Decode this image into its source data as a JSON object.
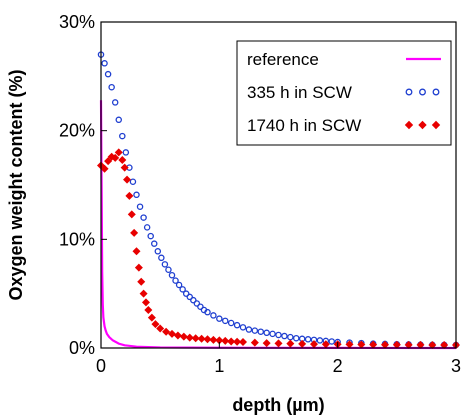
{
  "chart_data": {
    "type": "scatter",
    "xlabel": "depth (µm)",
    "ylabel": "Oxygen weight content (%)",
    "xlim": [
      0,
      3
    ],
    "ylim": [
      0,
      30
    ],
    "x_ticks": [
      {
        "value": 0,
        "label": "0"
      },
      {
        "value": 1,
        "label": "1"
      },
      {
        "value": 2,
        "label": "2"
      },
      {
        "value": 3,
        "label": "3"
      }
    ],
    "y_ticks": [
      {
        "value": 0,
        "label": "0%"
      },
      {
        "value": 10,
        "label": "10%"
      },
      {
        "value": 20,
        "label": "20%"
      },
      {
        "value": 30,
        "label": "30%"
      }
    ],
    "grid": false,
    "legend_position": "top-right",
    "series": [
      {
        "name": "reference",
        "style": "line",
        "color": "#ff00ff",
        "x": [
          0.0,
          0.005,
          0.01,
          0.015,
          0.02,
          0.03,
          0.04,
          0.05,
          0.07,
          0.1,
          0.15,
          0.2,
          0.3,
          0.5,
          1.0,
          2.0,
          3.0
        ],
        "y": [
          22.8,
          15.0,
          7.0,
          4.0,
          2.8,
          2.0,
          1.6,
          1.3,
          1.0,
          0.7,
          0.4,
          0.25,
          0.12,
          0.05,
          0.02,
          0.01,
          0.0
        ]
      },
      {
        "name": "335 h in SCW",
        "style": "open-circle",
        "color": "#1f3fd0",
        "x": [
          0.0,
          0.03,
          0.06,
          0.09,
          0.12,
          0.15,
          0.18,
          0.21,
          0.24,
          0.27,
          0.3,
          0.33,
          0.36,
          0.39,
          0.42,
          0.45,
          0.48,
          0.51,
          0.54,
          0.57,
          0.6,
          0.63,
          0.66,
          0.69,
          0.72,
          0.75,
          0.78,
          0.81,
          0.84,
          0.87,
          0.9,
          0.95,
          1.0,
          1.05,
          1.1,
          1.15,
          1.2,
          1.25,
          1.3,
          1.35,
          1.4,
          1.45,
          1.5,
          1.55,
          1.6,
          1.65,
          1.7,
          1.75,
          1.8,
          1.85,
          1.9,
          1.95,
          2.0,
          2.1,
          2.2,
          2.3,
          2.4,
          2.5,
          2.6,
          2.7,
          2.8,
          2.9,
          3.0
        ],
        "y": [
          27.0,
          26.2,
          25.2,
          24.0,
          22.6,
          21.0,
          19.5,
          18.0,
          16.6,
          15.3,
          14.1,
          13.0,
          12.0,
          11.1,
          10.3,
          9.6,
          8.9,
          8.3,
          7.7,
          7.2,
          6.7,
          6.2,
          5.8,
          5.4,
          5.0,
          4.7,
          4.4,
          4.1,
          3.8,
          3.5,
          3.3,
          3.0,
          2.7,
          2.5,
          2.3,
          2.1,
          1.9,
          1.7,
          1.6,
          1.5,
          1.4,
          1.3,
          1.2,
          1.1,
          1.0,
          0.9,
          0.85,
          0.8,
          0.75,
          0.7,
          0.65,
          0.6,
          0.55,
          0.5,
          0.45,
          0.4,
          0.38,
          0.35,
          0.33,
          0.31,
          0.3,
          0.29,
          0.28
        ]
      },
      {
        "name": "1740 h in SCW",
        "style": "filled-diamond",
        "color": "#e80000",
        "x": [
          0.0,
          0.03,
          0.06,
          0.09,
          0.12,
          0.15,
          0.18,
          0.2,
          0.22,
          0.24,
          0.26,
          0.28,
          0.3,
          0.32,
          0.34,
          0.36,
          0.38,
          0.4,
          0.43,
          0.46,
          0.5,
          0.55,
          0.6,
          0.65,
          0.7,
          0.75,
          0.8,
          0.85,
          0.9,
          0.95,
          1.0,
          1.05,
          1.1,
          1.15,
          1.2,
          1.3,
          1.4,
          1.5,
          1.6,
          1.7,
          1.8,
          1.9,
          2.0,
          2.1,
          2.2,
          2.3,
          2.4,
          2.5,
          2.6,
          2.7,
          2.8,
          2.9,
          3.0
        ],
        "y": [
          16.8,
          16.5,
          17.2,
          17.6,
          17.5,
          18.0,
          17.3,
          16.6,
          15.5,
          14.0,
          12.3,
          10.6,
          8.9,
          7.4,
          6.1,
          5.0,
          4.2,
          3.5,
          2.8,
          2.2,
          1.8,
          1.5,
          1.3,
          1.15,
          1.05,
          0.95,
          0.9,
          0.85,
          0.8,
          0.75,
          0.7,
          0.65,
          0.6,
          0.58,
          0.55,
          0.5,
          0.45,
          0.42,
          0.4,
          0.38,
          0.36,
          0.35,
          0.34,
          0.33,
          0.32,
          0.31,
          0.3,
          0.3,
          0.29,
          0.29,
          0.28,
          0.28,
          0.28
        ]
      }
    ]
  }
}
